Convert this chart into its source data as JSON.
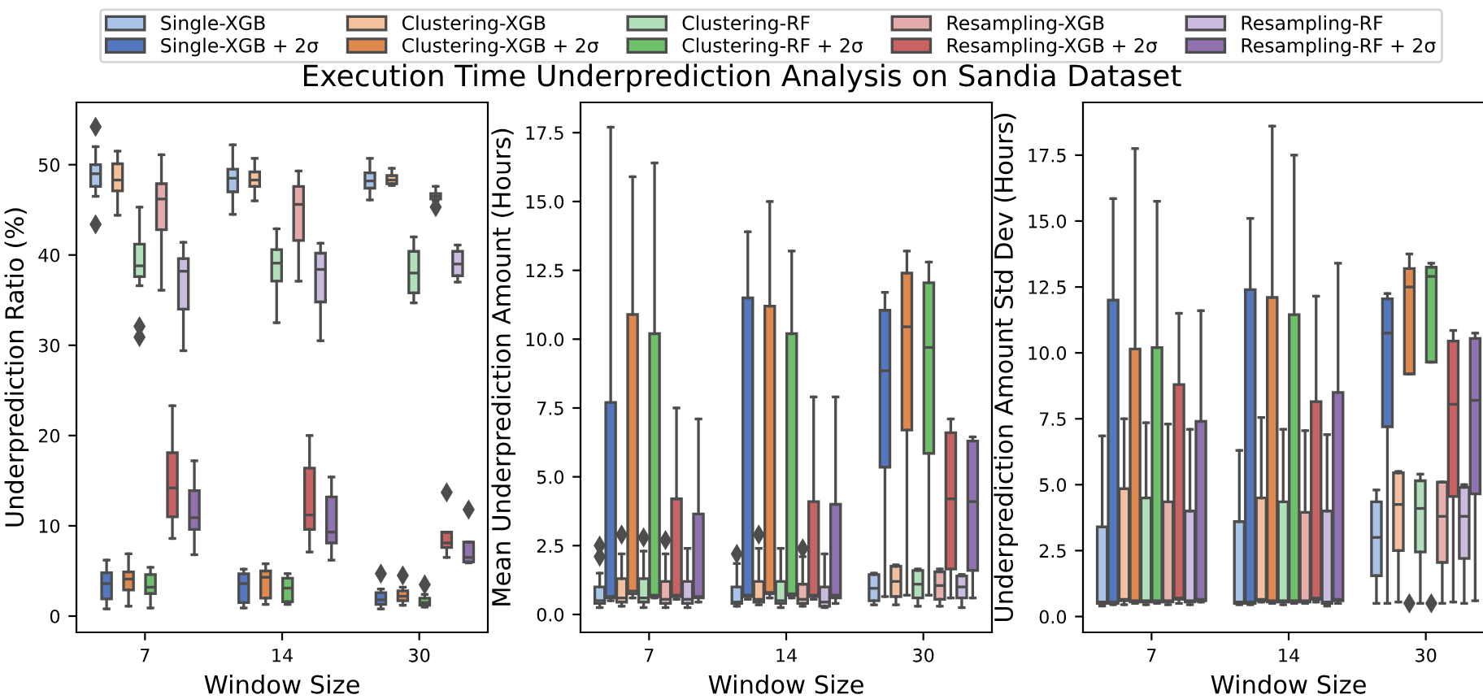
{
  "chart_data": [
    {
      "type": "box",
      "title": "Execution Time Underprediction Analysis on Sandia Dataset",
      "xlabel": "Window Size",
      "ylabel": "Underprediction Ratio (%)",
      "categories": [
        "7",
        "14",
        "30"
      ],
      "ylim": [
        -1.8,
        56.9
      ],
      "yticks": [
        0,
        10,
        20,
        30,
        40,
        50
      ],
      "legend": "top",
      "grid": false,
      "series": [
        {
          "name": "Single-XGB",
          "color": "#a9c4e8",
          "boxes": [
            {
              "low": 46.5,
              "q1": 47.6,
              "median": 49,
              "q3": 50,
              "high": 52,
              "outliers": [
                54.2,
                43.4
              ]
            },
            {
              "low": 44.5,
              "q1": 47,
              "median": 48.5,
              "q3": 49.5,
              "high": 52.2
            },
            {
              "low": 46.1,
              "q1": 47.4,
              "median": 48.2,
              "q3": 49.1,
              "high": 50.7
            }
          ]
        },
        {
          "name": "Single-XGB + 2σ",
          "color": "#5478c0",
          "boxes": [
            {
              "low": 0.8,
              "q1": 1.9,
              "median": 3.6,
              "q3": 4.8,
              "high": 6.2
            },
            {
              "low": 0.9,
              "q1": 1.5,
              "median": 3.6,
              "q3": 4.7,
              "high": 5.2
            },
            {
              "low": 0.8,
              "q1": 1.3,
              "median": 1.8,
              "q3": 2.6,
              "high": 3.0,
              "outliers": [
                4.7
              ]
            }
          ]
        },
        {
          "name": "Clustering-XGB",
          "color": "#f6c09a",
          "boxes": [
            {
              "low": 44.4,
              "q1": 47.1,
              "median": 48.3,
              "q3": 50.1,
              "high": 51.5
            },
            {
              "low": 46,
              "q1": 47.6,
              "median": 48.3,
              "q3": 49.2,
              "high": 50.7
            },
            {
              "low": 47.7,
              "q1": 47.9,
              "median": 48.3,
              "q3": 48.8,
              "high": 49.6
            }
          ]
        },
        {
          "name": "Clustering-XGB + 2σ",
          "color": "#e0894f",
          "boxes": [
            {
              "low": 1.1,
              "q1": 2.9,
              "median": 4.1,
              "q3": 4.9,
              "high": 6.9
            },
            {
              "low": 1.3,
              "q1": 2.0,
              "median": 4.3,
              "q3": 5.0,
              "high": 5.8
            },
            {
              "low": 1.2,
              "q1": 1.7,
              "median": 2.2,
              "q3": 2.8,
              "high": 3.2,
              "outliers": [
                4.5
              ]
            }
          ]
        },
        {
          "name": "Clustering-RF",
          "color": "#b0e0b8",
          "boxes": [
            {
              "low": 36.6,
              "q1": 37.6,
              "median": 38.8,
              "q3": 41.2,
              "high": 45.3,
              "outliers": [
                32.1,
                30.9
              ]
            },
            {
              "low": 32.5,
              "q1": 37.1,
              "median": 39.1,
              "q3": 40.6,
              "high": 42.9
            },
            {
              "low": 34.7,
              "q1": 35.8,
              "median": 38,
              "q3": 40.4,
              "high": 42
            }
          ]
        },
        {
          "name": "Clustering-RF + 2σ",
          "color": "#6ec06a",
          "boxes": [
            {
              "low": 0.9,
              "q1": 2.5,
              "median": 3.2,
              "q3": 4.6,
              "high": 5.4
            },
            {
              "low": 1.3,
              "q1": 1.6,
              "median": 3.1,
              "q3": 4.2,
              "high": 4.7
            },
            {
              "low": 1.0,
              "q1": 1.2,
              "median": 1.5,
              "q3": 2.0,
              "high": 2.4,
              "outliers": [
                3.5
              ]
            }
          ]
        },
        {
          "name": "Resampling-XGB",
          "color": "#e6a9a9",
          "boxes": [
            {
              "low": 36.1,
              "q1": 42.8,
              "median": 46.2,
              "q3": 47.9,
              "high": 51.1
            },
            {
              "low": 37.1,
              "q1": 41.6,
              "median": 45.6,
              "q3": 47.6,
              "high": 49.3
            },
            {
              "low": 46,
              "q1": 46.2,
              "median": 46.5,
              "q3": 46.8,
              "high": 47.6,
              "outliers": [
                45.3
              ]
            }
          ]
        },
        {
          "name": "Resampling-XGB + 2σ",
          "color": "#c96262",
          "boxes": [
            {
              "low": 8.6,
              "q1": 11,
              "median": 14.2,
              "q3": 18.1,
              "high": 23.3
            },
            {
              "low": 7.1,
              "q1": 9.6,
              "median": 11.2,
              "q3": 16.4,
              "high": 20
            },
            {
              "low": 6.5,
              "q1": 7.6,
              "median": 8.1,
              "q3": 9.3,
              "high": 9.3,
              "outliers": [
                13.7
              ]
            }
          ]
        },
        {
          "name": "Resampling-RF",
          "color": "#cbbbde",
          "boxes": [
            {
              "low": 29.4,
              "q1": 34,
              "median": 38.2,
              "q3": 39.6,
              "high": 41.4
            },
            {
              "low": 30.5,
              "q1": 34.8,
              "median": 38.4,
              "q3": 40.2,
              "high": 41.3
            },
            {
              "low": 37,
              "q1": 37.7,
              "median": 39,
              "q3": 40.4,
              "high": 41.1
            }
          ]
        },
        {
          "name": "Resampling-RF + 2σ",
          "color": "#9072b0",
          "boxes": [
            {
              "low": 6.8,
              "q1": 9.6,
              "median": 10.9,
              "q3": 13.9,
              "high": 17.2
            },
            {
              "low": 6.2,
              "q1": 8.1,
              "median": 9.3,
              "q3": 13.2,
              "high": 15.4
            },
            {
              "low": 5.9,
              "q1": 6.0,
              "median": 6.5,
              "q3": 8.2,
              "high": 8.2,
              "outliers": [
                11.8
              ]
            }
          ]
        }
      ]
    },
    {
      "type": "box",
      "xlabel": "Window Size",
      "ylabel": "Mean Underprediction Amount (Hours)",
      "categories": [
        "7",
        "14",
        "30"
      ],
      "ylim": [
        -0.65,
        18.6
      ],
      "yticks": [
        {
          "value": 0,
          "label": "0.0"
        },
        {
          "value": 2.5,
          "label": "2.5"
        },
        {
          "value": 5,
          "label": "5.0"
        },
        {
          "value": 7.5,
          "label": "7.5"
        },
        {
          "value": 10,
          "label": "10.0"
        },
        {
          "value": 12.5,
          "label": "12.5"
        },
        {
          "value": 15,
          "label": "15.0"
        },
        {
          "value": 17.5,
          "label": "17.5"
        }
      ],
      "grid": false,
      "series": [
        {
          "color": "#a9c4e8",
          "boxes": [
            {
              "low": 0.25,
              "q1": 0.4,
              "median": 0.5,
              "q3": 1.0,
              "high": 1.5,
              "outliers": [
                2.1,
                2.5
              ]
            },
            {
              "low": 0.3,
              "q1": 0.4,
              "median": 0.45,
              "q3": 1.0,
              "high": 1.85,
              "outliers": [
                2.2
              ]
            },
            {
              "low": 0.35,
              "q1": 0.5,
              "median": 0.95,
              "q3": 1.45,
              "high": 1.5
            }
          ]
        },
        {
          "color": "#5478c0",
          "boxes": [
            {
              "low": 0.5,
              "q1": 0.6,
              "median": 0.65,
              "q3": 7.7,
              "high": 17.7
            },
            {
              "low": 0.55,
              "q1": 0.65,
              "median": 0.7,
              "q3": 11.5,
              "high": 13.9
            },
            {
              "low": 0.65,
              "q1": 5.35,
              "median": 8.85,
              "q3": 11.05,
              "high": 11.7
            }
          ]
        },
        {
          "color": "#f3c0a0",
          "boxes": [
            {
              "low": 0.3,
              "q1": 0.45,
              "median": 0.6,
              "q3": 1.3,
              "high": 2.2,
              "outliers": [
                2.9
              ]
            },
            {
              "low": 0.35,
              "q1": 0.45,
              "median": 0.55,
              "q3": 1.2,
              "high": 2.4,
              "outliers": [
                2.9
              ]
            },
            {
              "low": 0.35,
              "q1": 0.65,
              "median": 1.2,
              "q3": 1.75,
              "high": 1.8
            }
          ]
        },
        {
          "color": "#e0894f",
          "boxes": [
            {
              "low": 0.6,
              "q1": 0.75,
              "median": 0.85,
              "q3": 10.9,
              "high": 15.9
            },
            {
              "low": 0.6,
              "q1": 0.75,
              "median": 0.8,
              "q3": 11.2,
              "high": 15.0
            },
            {
              "low": 0.7,
              "q1": 6.7,
              "median": 10.45,
              "q3": 12.4,
              "high": 13.2
            }
          ]
        },
        {
          "color": "#b0e0b8",
          "boxes": [
            {
              "low": 0.25,
              "q1": 0.45,
              "median": 0.6,
              "q3": 1.3,
              "high": 2.3,
              "outliers": [
                2.8
              ]
            },
            {
              "low": 0.25,
              "q1": 0.4,
              "median": 0.5,
              "q3": 1.2,
              "high": 2.4
            },
            {
              "low": 0.3,
              "q1": 0.6,
              "median": 1.1,
              "q3": 1.6,
              "high": 1.65
            }
          ]
        },
        {
          "color": "#6ec06a",
          "boxes": [
            {
              "low": 0.6,
              "q1": 0.65,
              "median": 0.7,
              "q3": 10.2,
              "high": 16.4
            },
            {
              "low": 0.6,
              "q1": 0.7,
              "median": 0.75,
              "q3": 10.2,
              "high": 13.2
            },
            {
              "low": 0.7,
              "q1": 5.85,
              "median": 9.7,
              "q3": 12.05,
              "high": 12.8
            }
          ]
        },
        {
          "color": "#e8b0ad",
          "boxes": [
            {
              "low": 0.25,
              "q1": 0.4,
              "median": 0.55,
              "q3": 1.2,
              "high": 2.2,
              "outliers": [
                2.7
              ]
            },
            {
              "low": 0.3,
              "q1": 0.4,
              "median": 0.55,
              "q3": 1.1,
              "high": 2.1,
              "outliers": [
                2.4
              ]
            },
            {
              "low": 0.3,
              "q1": 0.55,
              "median": 1.05,
              "q3": 1.55,
              "high": 1.65
            }
          ]
        },
        {
          "color": "#c96262",
          "boxes": [
            {
              "low": 0.55,
              "q1": 0.65,
              "median": 0.7,
              "q3": 4.2,
              "high": 7.5
            },
            {
              "low": 0.55,
              "q1": 0.65,
              "median": 0.7,
              "q3": 4.1,
              "high": 7.9
            },
            {
              "low": 0.6,
              "q1": 1.65,
              "median": 4.2,
              "q3": 6.6,
              "high": 7.1
            }
          ]
        },
        {
          "color": "#cbbbde",
          "boxes": [
            {
              "low": 0.25,
              "q1": 0.4,
              "median": 0.55,
              "q3": 1.2,
              "high": 2.4
            },
            {
              "low": 0.25,
              "q1": 0.3,
              "median": 0.45,
              "q3": 1.0,
              "high": 2.2
            },
            {
              "low": 0.25,
              "q1": 0.6,
              "median": 1.0,
              "q3": 1.4,
              "high": 1.45
            }
          ]
        },
        {
          "color": "#9072b0",
          "boxes": [
            {
              "low": 0.45,
              "q1": 0.6,
              "median": 0.65,
              "q3": 3.65,
              "high": 7.1
            },
            {
              "low": 0.4,
              "q1": 0.6,
              "median": 0.7,
              "q3": 4.0,
              "high": 7.9
            },
            {
              "low": 0.6,
              "q1": 1.6,
              "median": 4.1,
              "q3": 6.3,
              "high": 6.45
            }
          ]
        }
      ]
    },
    {
      "type": "box",
      "xlabel": "Window Size",
      "ylabel": "Underprediction Amount Std Dev (Hours)",
      "categories": [
        "7",
        "14",
        "30"
      ],
      "ylim": [
        -0.6,
        19.5
      ],
      "yticks": [
        {
          "value": 0,
          "label": "0.0"
        },
        {
          "value": 2.5,
          "label": "2.5"
        },
        {
          "value": 5,
          "label": "5.0"
        },
        {
          "value": 7.5,
          "label": "7.5"
        },
        {
          "value": 10,
          "label": "10.0"
        },
        {
          "value": 12.5,
          "label": "12.5"
        },
        {
          "value": 15,
          "label": "15.0"
        },
        {
          "value": 17.5,
          "label": "17.5"
        }
      ],
      "grid": false,
      "series": [
        {
          "color": "#a9c4e8",
          "boxes": [
            {
              "low": 0.4,
              "q1": 0.5,
              "median": 0.55,
              "q3": 3.4,
              "high": 6.85
            },
            {
              "low": 0.45,
              "q1": 0.5,
              "median": 0.55,
              "q3": 3.6,
              "high": 6.3
            },
            {
              "low": 0.5,
              "q1": 1.55,
              "median": 3.0,
              "q3": 4.35,
              "high": 4.8
            }
          ]
        },
        {
          "color": "#5478c0",
          "boxes": [
            {
              "low": 0.45,
              "q1": 0.5,
              "median": 0.55,
              "q3": 12.0,
              "high": 15.85
            },
            {
              "low": 0.45,
              "q1": 0.5,
              "median": 0.55,
              "q3": 12.4,
              "high": 15.1
            },
            {
              "low": 0.5,
              "q1": 7.2,
              "median": 10.75,
              "q3": 12.05,
              "high": 12.25
            }
          ]
        },
        {
          "color": "#f3c0a0",
          "boxes": [
            {
              "low": 0.45,
              "q1": 0.6,
              "median": 0.65,
              "q3": 4.85,
              "high": 7.5
            },
            {
              "low": 0.55,
              "q1": 0.6,
              "median": 0.65,
              "q3": 4.5,
              "high": 7.55
            },
            {
              "low": 0.55,
              "q1": 2.5,
              "median": 4.25,
              "q3": 5.45,
              "high": 5.5
            }
          ]
        },
        {
          "color": "#e0894f",
          "boxes": [
            {
              "low": 0.5,
              "q1": 0.55,
              "median": 0.6,
              "q3": 10.15,
              "high": 17.75
            },
            {
              "low": 0.5,
              "q1": 0.55,
              "median": 0.6,
              "q3": 12.1,
              "high": 18.6
            },
            {
              "low": 9.2,
              "q1": 9.2,
              "median": 12.5,
              "q3": 13.2,
              "high": 13.75,
              "outliers": [
                0.5
              ]
            }
          ]
        },
        {
          "color": "#b0e0b8",
          "boxes": [
            {
              "low": 0.45,
              "q1": 0.55,
              "median": 0.6,
              "q3": 4.5,
              "high": 7.35
            },
            {
              "low": 0.45,
              "q1": 0.55,
              "median": 0.6,
              "q3": 4.35,
              "high": 7.1
            },
            {
              "low": 0.5,
              "q1": 2.45,
              "median": 4.1,
              "q3": 5.15,
              "high": 5.4
            }
          ]
        },
        {
          "color": "#6ec06a",
          "boxes": [
            {
              "low": 0.5,
              "q1": 0.55,
              "median": 0.6,
              "q3": 10.2,
              "high": 15.75
            },
            {
              "low": 0.5,
              "q1": 0.55,
              "median": 0.6,
              "q3": 11.45,
              "high": 17.5
            },
            {
              "low": 9.65,
              "q1": 9.65,
              "median": 12.9,
              "q3": 13.25,
              "high": 13.4,
              "outliers": [
                0.5
              ]
            }
          ]
        },
        {
          "color": "#e8b0ad",
          "boxes": [
            {
              "low": 0.45,
              "q1": 0.55,
              "median": 0.6,
              "q3": 4.35,
              "high": 7.3
            },
            {
              "low": 0.5,
              "q1": 0.55,
              "median": 0.6,
              "q3": 3.95,
              "high": 7.05
            },
            {
              "low": 0.5,
              "q1": 2.05,
              "median": 3.8,
              "q3": 5.1,
              "high": 5.1
            }
          ]
        },
        {
          "color": "#c96262",
          "boxes": [
            {
              "low": 0.5,
              "q1": 0.65,
              "median": 0.7,
              "q3": 8.8,
              "high": 11.5
            },
            {
              "low": 0.55,
              "q1": 0.65,
              "median": 0.7,
              "q3": 8.15,
              "high": 12.15
            },
            {
              "low": 0.55,
              "q1": 4.55,
              "median": 8.05,
              "q3": 10.45,
              "high": 10.85
            }
          ]
        },
        {
          "color": "#cbbbde",
          "boxes": [
            {
              "low": 0.45,
              "q1": 0.55,
              "median": 0.6,
              "q3": 4.0,
              "high": 7.1
            },
            {
              "low": 0.4,
              "q1": 0.5,
              "median": 0.55,
              "q3": 4.0,
              "high": 6.9
            },
            {
              "low": 0.5,
              "q1": 2.2,
              "median": 3.8,
              "q3": 4.9,
              "high": 5.0
            }
          ]
        },
        {
          "color": "#9072b0",
          "boxes": [
            {
              "low": 0.55,
              "q1": 0.6,
              "median": 0.65,
              "q3": 7.4,
              "high": 11.6
            },
            {
              "low": 0.5,
              "q1": 0.6,
              "median": 0.65,
              "q3": 8.5,
              "high": 13.4
            },
            {
              "low": 0.6,
              "q1": 4.65,
              "median": 8.2,
              "q3": 10.55,
              "high": 10.75
            }
          ]
        }
      ]
    }
  ]
}
